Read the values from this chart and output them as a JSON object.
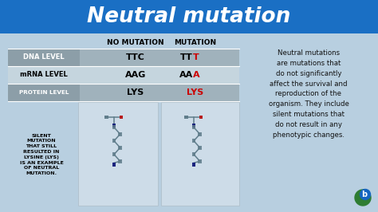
{
  "title": "Neutral mutation",
  "title_bg_top": "#1a6fc4",
  "title_bg_bot": "#1a6fc4",
  "title_color": "#ffffff",
  "bg_color": "#b8cfe0",
  "table_header_no_mutation": "NO MUTATION",
  "table_header_mutation": "MUTATION",
  "rows": [
    {
      "label": "DNA LEVEL",
      "no_mut": "TTC",
      "mut_base": "TT",
      "mut_changed": "T",
      "label_bg": "#8c9ea8",
      "row_bg": "#a0b2bc",
      "label_color": "#ffffff",
      "label_bold": true
    },
    {
      "label": "mRNA LEVEL",
      "no_mut": "AAG",
      "mut_base": "AA",
      "mut_changed": "A",
      "label_bg": "#c5d5de",
      "row_bg": "#c5d5de",
      "label_color": "#000000",
      "label_bold": true
    },
    {
      "label": "PROTEIN LEVEL",
      "no_mut": "LYS",
      "mut_base": "",
      "mut_changed": "LYS",
      "label_bg": "#8c9ea8",
      "row_bg": "#a0b2bc",
      "label_color": "#ffffff",
      "label_bold": true
    }
  ],
  "changed_color": "#cc0000",
  "silent_text": "SILENT\nMUTATION\nTHAT STILL\nRESULTED IN\nLYSINE (LYS)\nIS AN EXAMPLE\nOF NEUTRAL\nMUTATION.",
  "silent_text_color": "#000000",
  "desc_text": "Neutral mutations\nare mutations that\ndo not significantly\naffect the survival and\nreproduction of the\norganism. They include\nsilent mutations that\ndo not result in any\nphenotypic changes.",
  "desc_text_color": "#111111",
  "mol_box_bg": "#cddce8",
  "mol_box_edge": "#b0c0cc",
  "header_color": "#000000",
  "N_color": "#1a237e",
  "O_color": "#b71c1c",
  "C_color": "#607d8b",
  "logo_green": "#2e7d32",
  "logo_blue": "#1565c0"
}
